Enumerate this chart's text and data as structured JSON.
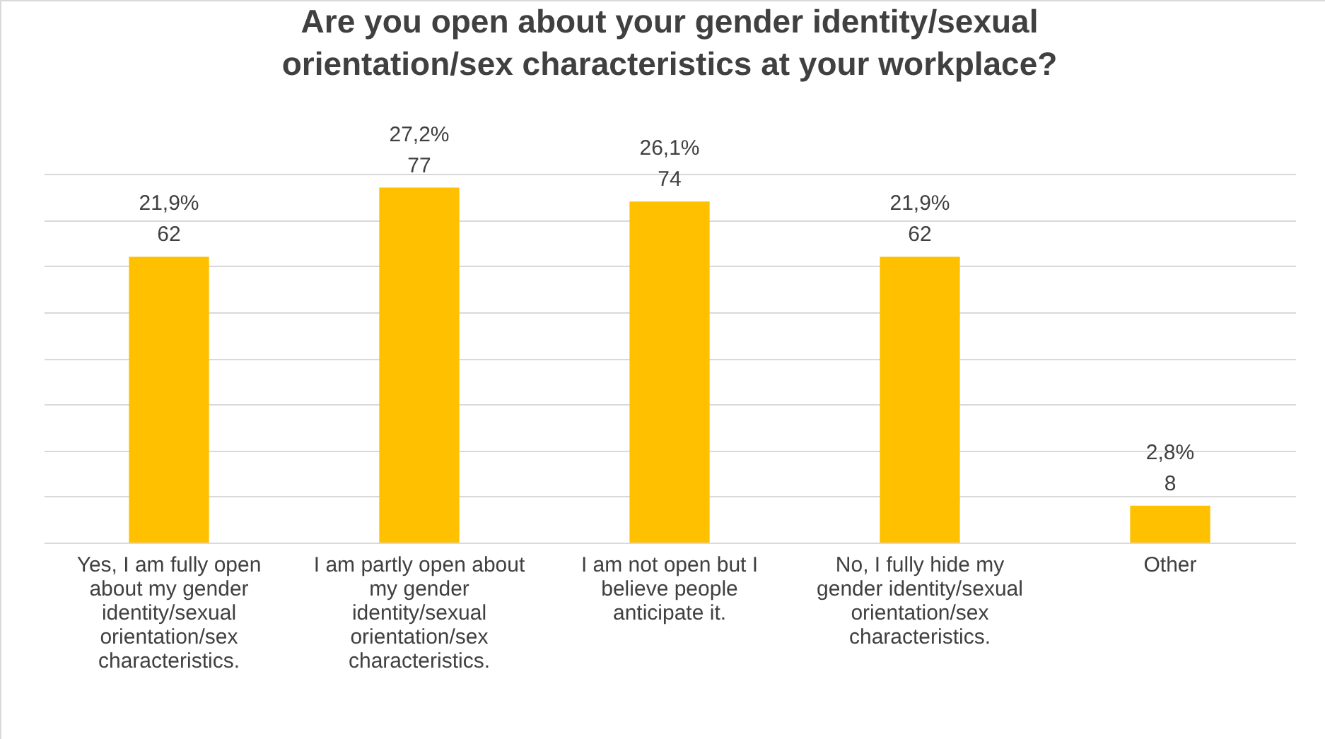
{
  "chart_data": {
    "type": "bar",
    "title": "Are you open about your gender identity/sexual orientation/sex characteristics at your workplace?",
    "categories": [
      "Yes, I am fully open about my gender identity/sexual orientation/sex characteristics.",
      "I am partly open about my gender identity/sexual orientation/sex characteristics.",
      "I am not open but I believe people anticipate it.",
      "No, I fully hide my gender identity/sexual orientation/sex characteristics.",
      "Other"
    ],
    "values": [
      62,
      77,
      74,
      62,
      8
    ],
    "value_labels": [
      "21,9%\n62",
      "27,2%\n77",
      "26,1%\n74",
      "21,9%\n62",
      "2,8%\n8"
    ],
    "color": "#ffc000",
    "grid": "y",
    "tick_labels": "x"
  }
}
